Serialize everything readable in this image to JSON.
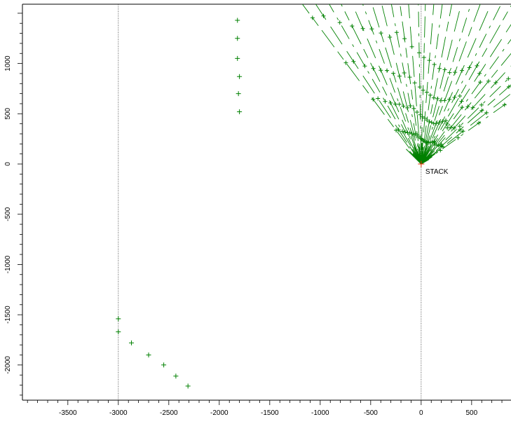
{
  "chart_data": {
    "type": "scatter",
    "title": "",
    "xlabel": "",
    "ylabel": "",
    "xlim": [
      -3950,
      890
    ],
    "ylim": [
      -2350,
      1590
    ],
    "xticks": [
      -3500,
      -3000,
      -2500,
      -2000,
      -1500,
      -1000,
      -500,
      0,
      500
    ],
    "yticks": [
      -2000,
      -1500,
      -1000,
      -500,
      0,
      500,
      1000
    ],
    "xtick_labels": [
      "-3500",
      "-3000",
      "-2500",
      "-2000",
      "-1500",
      "-1000",
      "-500",
      "0",
      "500"
    ],
    "ytick_labels": [
      "-2000",
      "-1500",
      "-1000",
      "-500",
      "0",
      "500",
      "1000"
    ],
    "reference_lines_x": [
      -3000,
      0
    ],
    "grid": false,
    "source": {
      "name": "STACK",
      "x": 0,
      "y": 0,
      "color": "#e03000"
    },
    "receptors_color": "#008000",
    "receptor_rays": [
      {
        "angle_deg": 35.5,
        "distance": 1950
      },
      {
        "angle_deg": 38.2,
        "distance": 2290
      },
      {
        "angle_deg": 41.5,
        "distance": 2230
      },
      {
        "angle_deg": 44.5,
        "distance": 2330
      },
      {
        "angle_deg": 47.6,
        "distance": 2110
      },
      {
        "angle_deg": 51.0,
        "distance": 2040
      },
      {
        "angle_deg": 54.3,
        "distance": 1930
      },
      {
        "angle_deg": 57.3,
        "distance": 2060
      },
      {
        "angle_deg": 60.5,
        "distance": 2160
      },
      {
        "angle_deg": 63.5,
        "distance": 2060
      },
      {
        "angle_deg": 66.5,
        "distance": 1950
      },
      {
        "angle_deg": 69.8,
        "distance": 1870
      },
      {
        "angle_deg": 72.8,
        "distance": 1830
      },
      {
        "angle_deg": 76.0,
        "distance": 1860
      },
      {
        "angle_deg": 79.2,
        "distance": 1860
      },
      {
        "angle_deg": 82.5,
        "distance": 1920
      },
      {
        "angle_deg": 85.5,
        "distance": 1990
      },
      {
        "angle_deg": 88.5,
        "distance": 2040
      },
      {
        "angle_deg": 91.0,
        "distance": 2130
      },
      {
        "angle_deg": 94.5,
        "distance": 2250
      },
      {
        "angle_deg": 97.5,
        "distance": 2420
      },
      {
        "angle_deg": 100.5,
        "distance": 2560
      },
      {
        "angle_deg": 103.8,
        "distance": 2500
      },
      {
        "angle_deg": 107.0,
        "distance": 2620
      },
      {
        "angle_deg": 110.0,
        "distance": 2750
      },
      {
        "angle_deg": 113.2,
        "distance": 2820
      },
      {
        "angle_deg": 116.5,
        "distance": 2950
      },
      {
        "angle_deg": 119.8,
        "distance": 3120
      },
      {
        "angle_deg": 123.3,
        "distance": 3390
      },
      {
        "angle_deg": 126.5,
        "distance": 3480
      }
    ],
    "inner_receptor_fractions": [
      0.12,
      0.23,
      0.36,
      0.52
    ],
    "outer_extra_points": [
      {
        "x": -3000,
        "y": -1540
      },
      {
        "x": -3000,
        "y": -1670
      },
      {
        "x": -2870,
        "y": -1780
      },
      {
        "x": -2700,
        "y": -1900
      },
      {
        "x": -2550,
        "y": -2000
      },
      {
        "x": -2430,
        "y": -2110
      },
      {
        "x": -2310,
        "y": -2210
      },
      {
        "x": -1820,
        "y": 1430
      },
      {
        "x": -1820,
        "y": 1250
      },
      {
        "x": -1820,
        "y": 1050
      },
      {
        "x": -1800,
        "y": 870
      },
      {
        "x": -1810,
        "y": 700
      },
      {
        "x": -1800,
        "y": 520
      }
    ]
  }
}
